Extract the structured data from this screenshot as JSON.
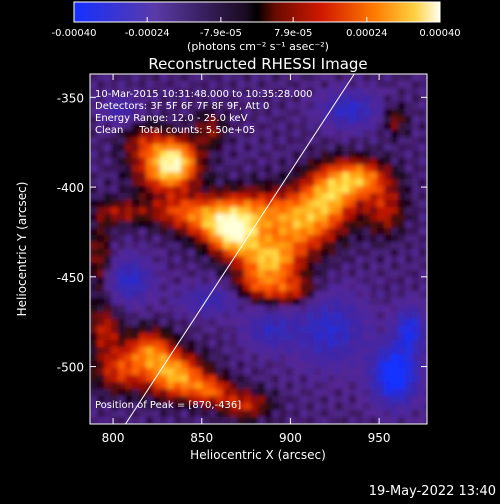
{
  "colorbar": {
    "tick_labels": [
      "-0.00040",
      "-0.00024",
      "-7.9e-05",
      "7.9e-05",
      "0.00024",
      "0.00040"
    ],
    "tick_values": [
      -0.0004,
      -0.00024,
      -7.9e-05,
      7.9e-05,
      0.00024,
      0.0004
    ],
    "range": [
      -0.0004,
      0.0004
    ],
    "units_text": "(photons cm⁻² s⁻¹ asec⁻²)"
  },
  "plot": {
    "title": "Reconstructed RHESSI Image",
    "xlabel": "Heliocentric X (arcsec)",
    "ylabel": "Heliocentric Y (arcsec)",
    "xlim": [
      787,
      977
    ],
    "ylim": [
      -532,
      -337
    ],
    "xticks": [
      800,
      850,
      900,
      950
    ],
    "yticks": [
      -350,
      -400,
      -450,
      -500
    ],
    "limb_line": {
      "x": [
        807,
        936
      ],
      "y": [
        -532,
        -337
      ]
    }
  },
  "annotations": {
    "time": "10-Mar-2015 10:31:48.000 to 10:35:28.000",
    "detectors": "Detectors: 3F 5F 6F 7F 8F 9F, Att 0",
    "energy": "Energy Range: 12.0 - 25.0 keV",
    "clean": "Clean     Total counts: 5.50e+05",
    "peak": "Position of Peak = [870,-436]"
  },
  "footer": {
    "timestamp": "19-May-2022 13:40"
  },
  "colors": {
    "background": "#000000",
    "foreground": "#ffffff",
    "negative_min": "#1530ff",
    "negative_mid": "#5a3aa8",
    "zero": "#000000",
    "positive_low": "#a01010",
    "positive_mid": "#ff5a00",
    "positive_max": "#ffffa0"
  }
}
